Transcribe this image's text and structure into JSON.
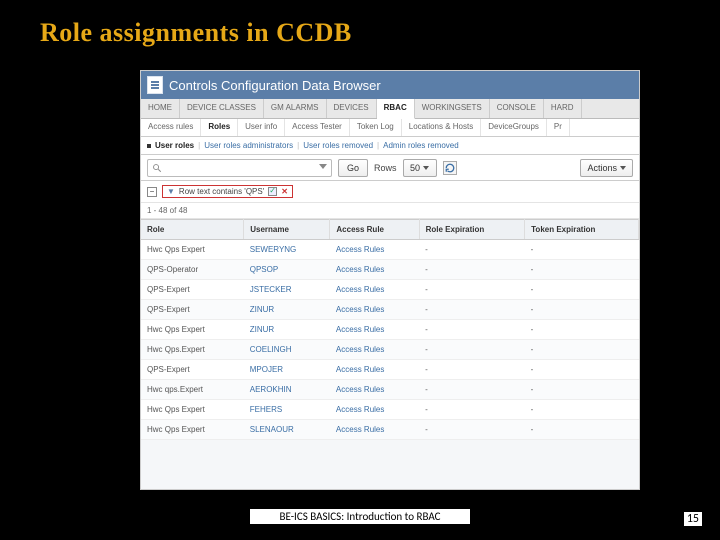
{
  "slide": {
    "title": "Role assignments in CCDB",
    "footer": "BE-ICS BASICS: Introduction to RBAC",
    "page": "15"
  },
  "app": {
    "title": "Controls Configuration Data Browser",
    "tabs1": [
      "HOME",
      "DEVICE CLASSES",
      "GM ALARMS",
      "DEVICES",
      "RBAC",
      "WORKINGSETS",
      "CONSOLE",
      "HARD"
    ],
    "tabs1_active": 4,
    "tabs2": [
      "Access rules",
      "Roles",
      "User info",
      "Access Tester",
      "Token Log",
      "Locations & Hosts",
      "DeviceGroups",
      "Pr"
    ],
    "tabs2_active": 1,
    "subnav": {
      "current": "User roles",
      "links": [
        "User roles administrators",
        "User roles removed",
        "Admin roles removed"
      ]
    },
    "toolbar": {
      "go_label": "Go",
      "rows_label": "Rows",
      "rows_value": "50",
      "actions_label": "Actions"
    },
    "filter": {
      "chip_text": "Row text contains 'QPS'",
      "checked": true
    },
    "count": "1 - 48 of 48",
    "table": {
      "columns": [
        "Role",
        "Username",
        "Access Rule",
        "Role Expiration",
        "Token Expiration"
      ],
      "rows": [
        [
          "Hwc Qps Expert",
          "SEWERYNG",
          "Access Rules",
          "-",
          "-"
        ],
        [
          "QPS-Operator",
          "QPSOP",
          "Access Rules",
          "-",
          "-"
        ],
        [
          "QPS-Expert",
          "JSTECKER",
          "Access Rules",
          "-",
          "-"
        ],
        [
          "QPS-Expert",
          "ZINUR",
          "Access Rules",
          "-",
          "-"
        ],
        [
          "Hwc Qps Expert",
          "ZINUR",
          "Access Rules",
          "-",
          "-"
        ],
        [
          "Hwc Qps.Expert",
          "COELINGH",
          "Access Rules",
          "-",
          "-"
        ],
        [
          "QPS-Expert",
          "MPOJER",
          "Access Rules",
          "-",
          "-"
        ],
        [
          "Hwc qps.Expert",
          "AEROKHIN",
          "Access Rules",
          "-",
          "-"
        ],
        [
          "Hwc Qps Expert",
          "FEHERS",
          "Access Rules",
          "-",
          "-"
        ],
        [
          "Hwc Qps Expert",
          "SLENAOUR",
          "Access Rules",
          "-",
          "-"
        ]
      ]
    }
  }
}
